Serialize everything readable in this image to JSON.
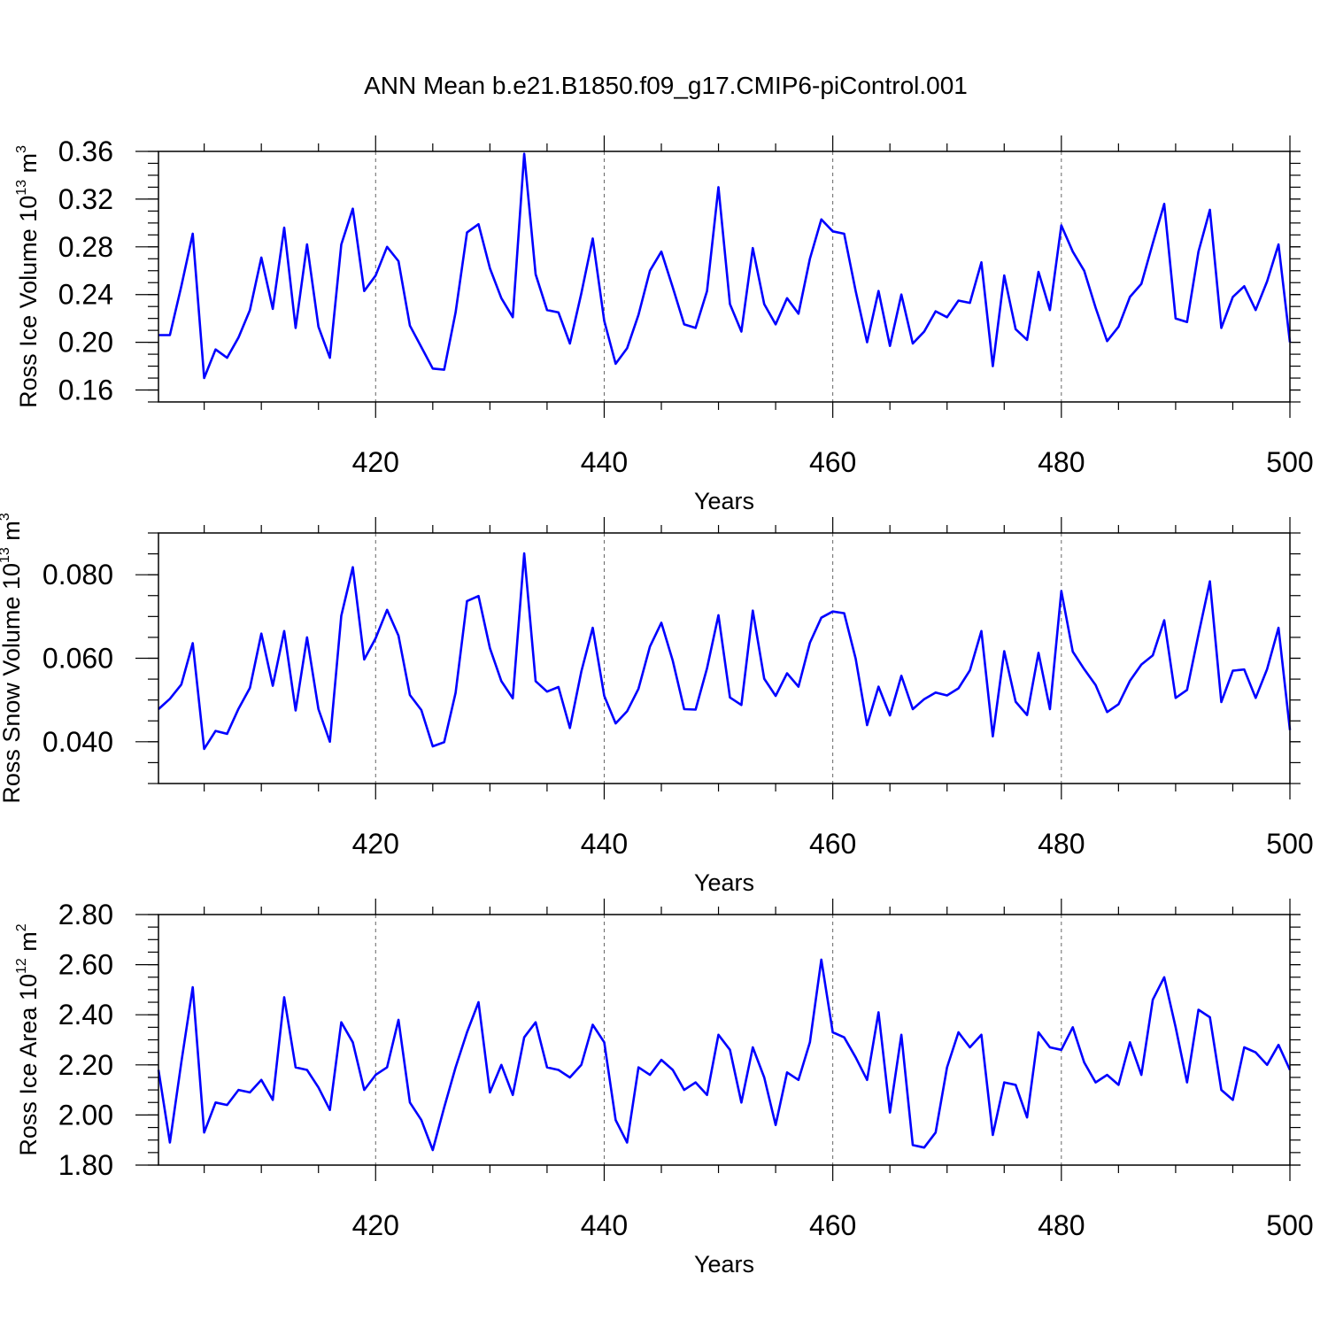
{
  "title": "ANN Mean b.e21.B1850.f09_g17.CMIP6-piControl.001",
  "colors": {
    "line": "#0000ff",
    "frame": "#000000",
    "grid": "#666666"
  },
  "chart_data": [
    {
      "type": "line",
      "xlabel": "Years",
      "ylabel": {
        "prefix": "Ross Ice Volume 10",
        "exp": "13",
        "mid": " m",
        "unit_exp": "3"
      },
      "xlim": [
        401,
        500
      ],
      "ylim": [
        0.15,
        0.36
      ],
      "xticks": [
        420,
        440,
        460,
        480,
        500
      ],
      "xtick_labels": [
        "420",
        "440",
        "460",
        "480",
        "500"
      ],
      "yticks": [
        0.16,
        0.2,
        0.24,
        0.28,
        0.32,
        0.36
      ],
      "ytick_labels": [
        "0.16",
        "0.20",
        "0.24",
        "0.28",
        "0.32",
        "0.36"
      ],
      "grid": "vertical dashed at major x ticks",
      "series": [
        {
          "x_start": 401,
          "values": [
            0.206,
            0.206,
            0.247,
            0.291,
            0.17,
            0.194,
            0.187,
            0.204,
            0.227,
            0.271,
            0.228,
            0.296,
            0.212,
            0.282,
            0.213,
            0.187,
            0.282,
            0.312,
            0.243,
            0.256,
            0.28,
            0.268,
            0.214,
            0.196,
            0.178,
            0.177,
            0.225,
            0.292,
            0.299,
            0.262,
            0.237,
            0.221,
            0.358,
            0.257,
            0.227,
            0.225,
            0.199,
            0.241,
            0.287,
            0.218,
            0.182,
            0.195,
            0.223,
            0.26,
            0.276,
            0.246,
            0.215,
            0.212,
            0.243,
            0.33,
            0.232,
            0.209,
            0.279,
            0.232,
            0.215,
            0.237,
            0.224,
            0.27,
            0.303,
            0.293,
            0.291,
            0.243,
            0.2,
            0.243,
            0.197,
            0.24,
            0.199,
            0.209,
            0.226,
            0.221,
            0.235,
            0.233,
            0.267,
            0.18,
            0.256,
            0.211,
            0.202,
            0.259,
            0.227,
            0.298,
            0.276,
            0.26,
            0.229,
            0.201,
            0.213,
            0.238,
            0.249,
            0.283,
            0.316,
            0.22,
            0.217,
            0.276,
            0.311,
            0.212,
            0.238,
            0.247,
            0.227,
            0.251,
            0.282,
            0.2
          ]
        }
      ]
    },
    {
      "type": "line",
      "xlabel": "Years",
      "ylabel": {
        "prefix": "Ross Snow Volume 10",
        "exp": "13",
        "mid": " m",
        "unit_exp": "3"
      },
      "xlim": [
        401,
        500
      ],
      "ylim": [
        0.03,
        0.09
      ],
      "xticks": [
        420,
        440,
        460,
        480,
        500
      ],
      "xtick_labels": [
        "420",
        "440",
        "460",
        "480",
        "500"
      ],
      "yticks": [
        0.04,
        0.06,
        0.08
      ],
      "ytick_labels": [
        "0.040",
        "0.060",
        "0.080"
      ],
      "grid": "vertical dashed at major x ticks",
      "series": [
        {
          "x_start": 401,
          "values": [
            0.0478,
            0.0503,
            0.0537,
            0.0636,
            0.0383,
            0.0426,
            0.0419,
            0.0479,
            0.0529,
            0.0659,
            0.0534,
            0.0665,
            0.0475,
            0.065,
            0.0478,
            0.04,
            0.0702,
            0.0818,
            0.0597,
            0.0648,
            0.0716,
            0.0654,
            0.0512,
            0.0476,
            0.0389,
            0.0399,
            0.0517,
            0.0737,
            0.0749,
            0.0624,
            0.0545,
            0.0504,
            0.0851,
            0.0545,
            0.052,
            0.0531,
            0.0433,
            0.0568,
            0.0673,
            0.051,
            0.0444,
            0.0473,
            0.0527,
            0.0628,
            0.0685,
            0.0594,
            0.0478,
            0.0477,
            0.0576,
            0.0703,
            0.0506,
            0.0488,
            0.0714,
            0.0551,
            0.051,
            0.0564,
            0.0532,
            0.0637,
            0.0697,
            0.0712,
            0.0708,
            0.0599,
            0.044,
            0.0532,
            0.0463,
            0.0558,
            0.0478,
            0.0502,
            0.0518,
            0.0511,
            0.0528,
            0.0571,
            0.0665,
            0.0413,
            0.0617,
            0.0496,
            0.0464,
            0.0613,
            0.0478,
            0.0761,
            0.0616,
            0.0574,
            0.0536,
            0.0471,
            0.049,
            0.0546,
            0.0585,
            0.0607,
            0.0691,
            0.0505,
            0.0524,
            0.0657,
            0.0784,
            0.0495,
            0.057,
            0.0573,
            0.0505,
            0.0574,
            0.0673,
            0.0428
          ]
        }
      ]
    },
    {
      "type": "line",
      "xlabel": "Years",
      "ylabel": {
        "prefix": "Ross Ice Area 10",
        "exp": "12",
        "mid": " m",
        "unit_exp": "2"
      },
      "xlim": [
        401,
        500
      ],
      "ylim": [
        1.8,
        2.8
      ],
      "xticks": [
        420,
        440,
        460,
        480,
        500
      ],
      "xtick_labels": [
        "420",
        "440",
        "460",
        "480",
        "500"
      ],
      "yticks": [
        1.8,
        2.0,
        2.2,
        2.4,
        2.6,
        2.8
      ],
      "ytick_labels": [
        "1.80",
        "2.00",
        "2.20",
        "2.40",
        "2.60",
        "2.80"
      ],
      "grid": "vertical dashed at major x ticks",
      "series": [
        {
          "x_start": 401,
          "values": [
            2.18,
            1.89,
            2.21,
            2.51,
            1.93,
            2.05,
            2.04,
            2.1,
            2.09,
            2.14,
            2.06,
            2.47,
            2.19,
            2.18,
            2.11,
            2.02,
            2.37,
            2.29,
            2.1,
            2.16,
            2.19,
            2.38,
            2.05,
            1.98,
            1.86,
            2.03,
            2.19,
            2.33,
            2.45,
            2.09,
            2.2,
            2.08,
            2.31,
            2.37,
            2.19,
            2.18,
            2.15,
            2.2,
            2.36,
            2.29,
            1.98,
            1.89,
            2.19,
            2.16,
            2.22,
            2.18,
            2.1,
            2.13,
            2.08,
            2.32,
            2.26,
            2.05,
            2.27,
            2.15,
            1.96,
            2.17,
            2.14,
            2.29,
            2.62,
            2.33,
            2.31,
            2.23,
            2.14,
            2.41,
            2.01,
            2.32,
            1.88,
            1.87,
            1.93,
            2.19,
            2.33,
            2.27,
            2.32,
            1.92,
            2.13,
            2.12,
            1.99,
            2.33,
            2.27,
            2.26,
            2.35,
            2.21,
            2.13,
            2.16,
            2.12,
            2.29,
            2.16,
            2.46,
            2.55,
            2.35,
            2.13,
            2.42,
            2.39,
            2.1,
            2.06,
            2.27,
            2.25,
            2.2,
            2.28,
            2.18
          ]
        }
      ]
    }
  ]
}
